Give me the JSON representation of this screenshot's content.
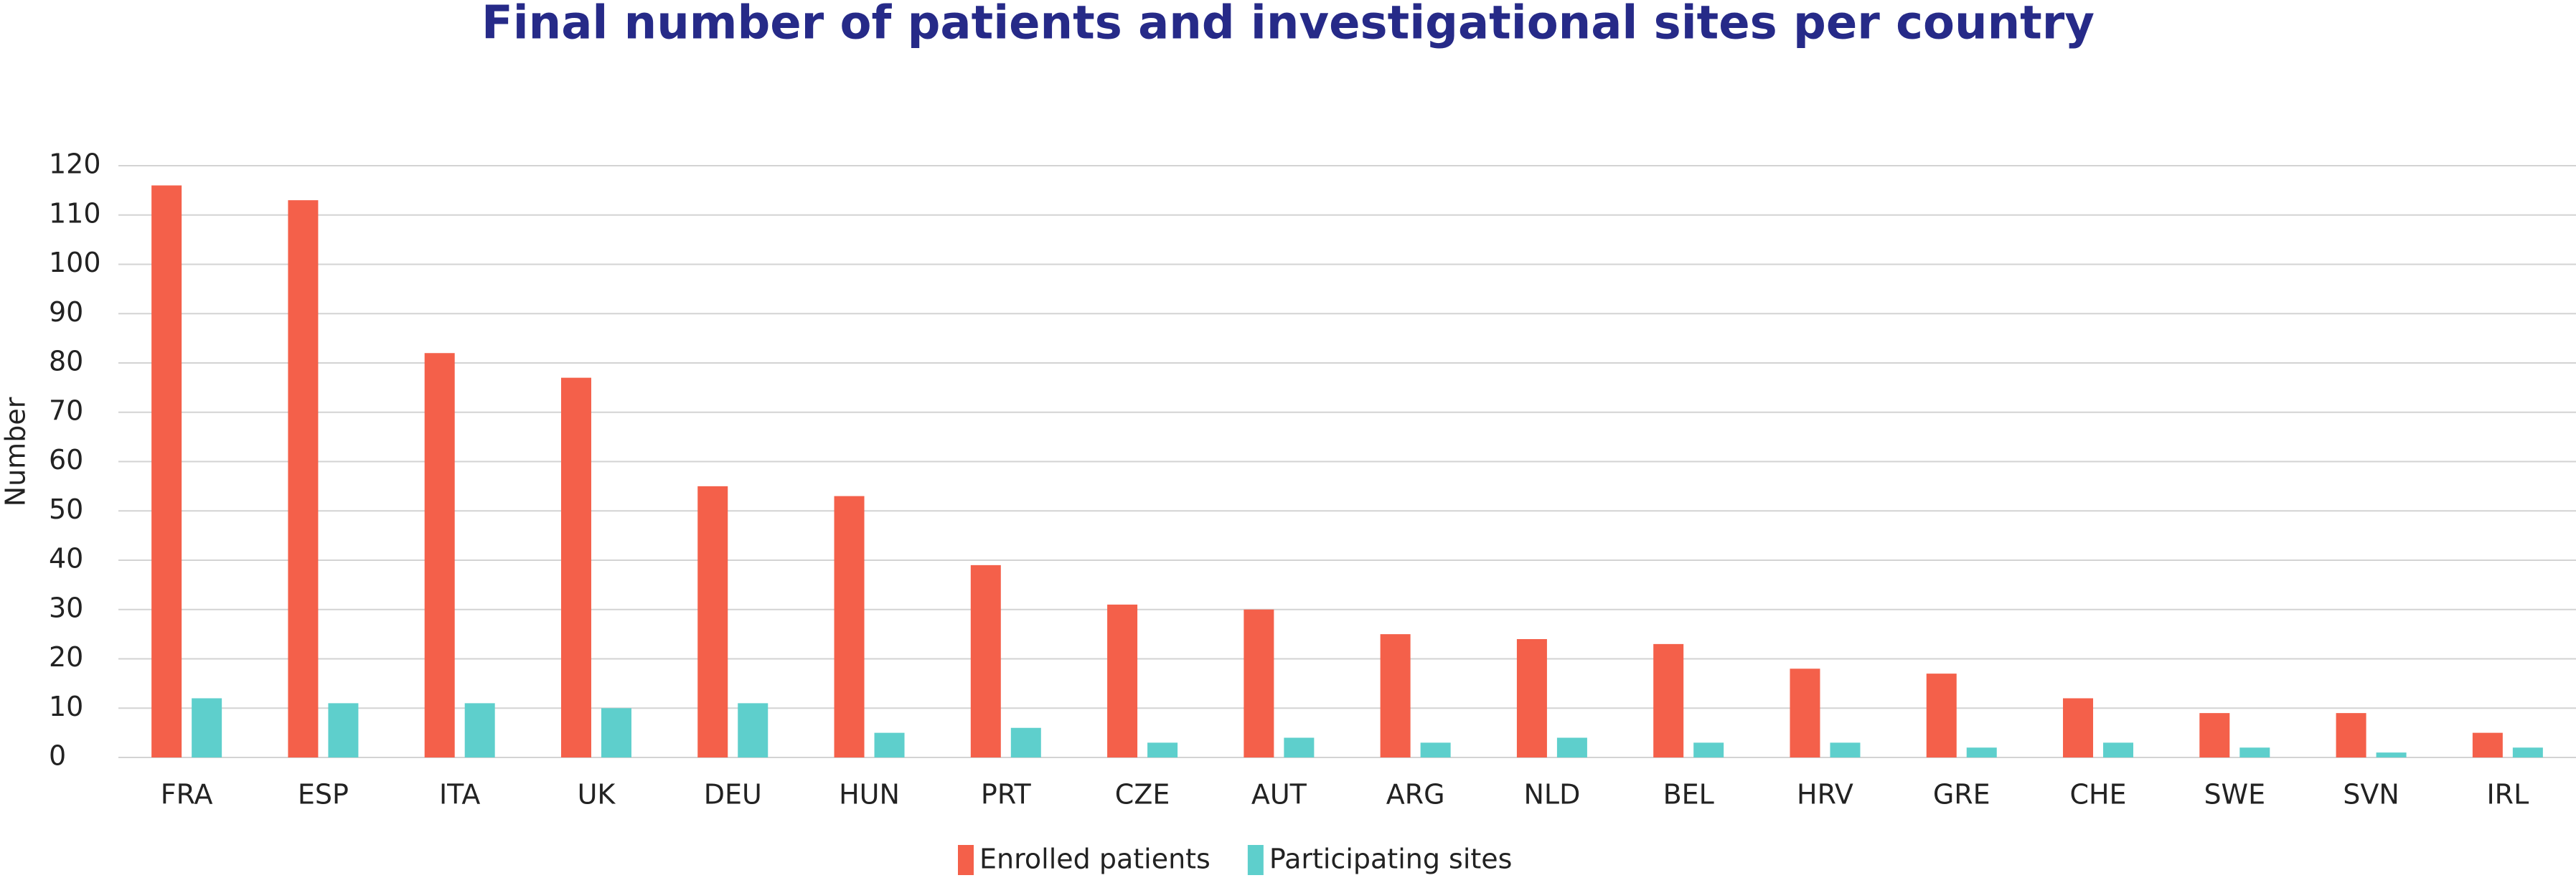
{
  "chart_data": {
    "type": "bar",
    "title": "Final number of patients and investigational sites per country",
    "y_label": "Number",
    "categories": [
      "FRA",
      "ESP",
      "ITA",
      "UK",
      "DEU",
      "HUN",
      "PRT",
      "CZE",
      "AUT",
      "ARG",
      "NLD",
      "BEL",
      "HRV",
      "GRE",
      "CHE",
      "SWE",
      "SVN",
      "IRL"
    ],
    "series": [
      {
        "name": "Enrolled patients",
        "color": "#f4604a",
        "values": [
          116,
          113,
          82,
          77,
          55,
          53,
          39,
          31,
          30,
          25,
          24,
          23,
          18,
          17,
          12,
          9,
          9,
          5
        ]
      },
      {
        "name": "Participating sites",
        "color": "#5ecfcc",
        "values": [
          12,
          11,
          11,
          10,
          11,
          5,
          6,
          3,
          4,
          3,
          4,
          3,
          3,
          2,
          3,
          2,
          1,
          2
        ]
      }
    ],
    "ylim": [
      0,
      120
    ],
    "yticks": [
      0,
      10,
      20,
      30,
      40,
      50,
      60,
      70,
      80,
      90,
      100,
      110,
      120
    ],
    "grid": true,
    "legend": "bottom"
  }
}
